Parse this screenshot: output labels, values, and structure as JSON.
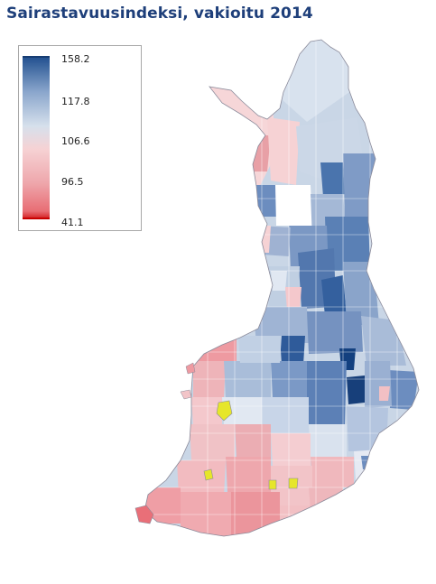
{
  "title": "Sairastavuusindeksi, vakioitu 2014",
  "legend": {
    "labels": [
      "158.2",
      "117.8",
      "106.6",
      "96.5",
      "41.1"
    ]
  },
  "colors": {
    "high": "#1f4e8e",
    "mid_high": "#8aa6cc",
    "neutral_blue": "#d6e0ec",
    "neutral_pink": "#f6d2d4",
    "low": "#e86d74",
    "lowest": "#d11818",
    "highlight": "#e8e82a"
  }
}
